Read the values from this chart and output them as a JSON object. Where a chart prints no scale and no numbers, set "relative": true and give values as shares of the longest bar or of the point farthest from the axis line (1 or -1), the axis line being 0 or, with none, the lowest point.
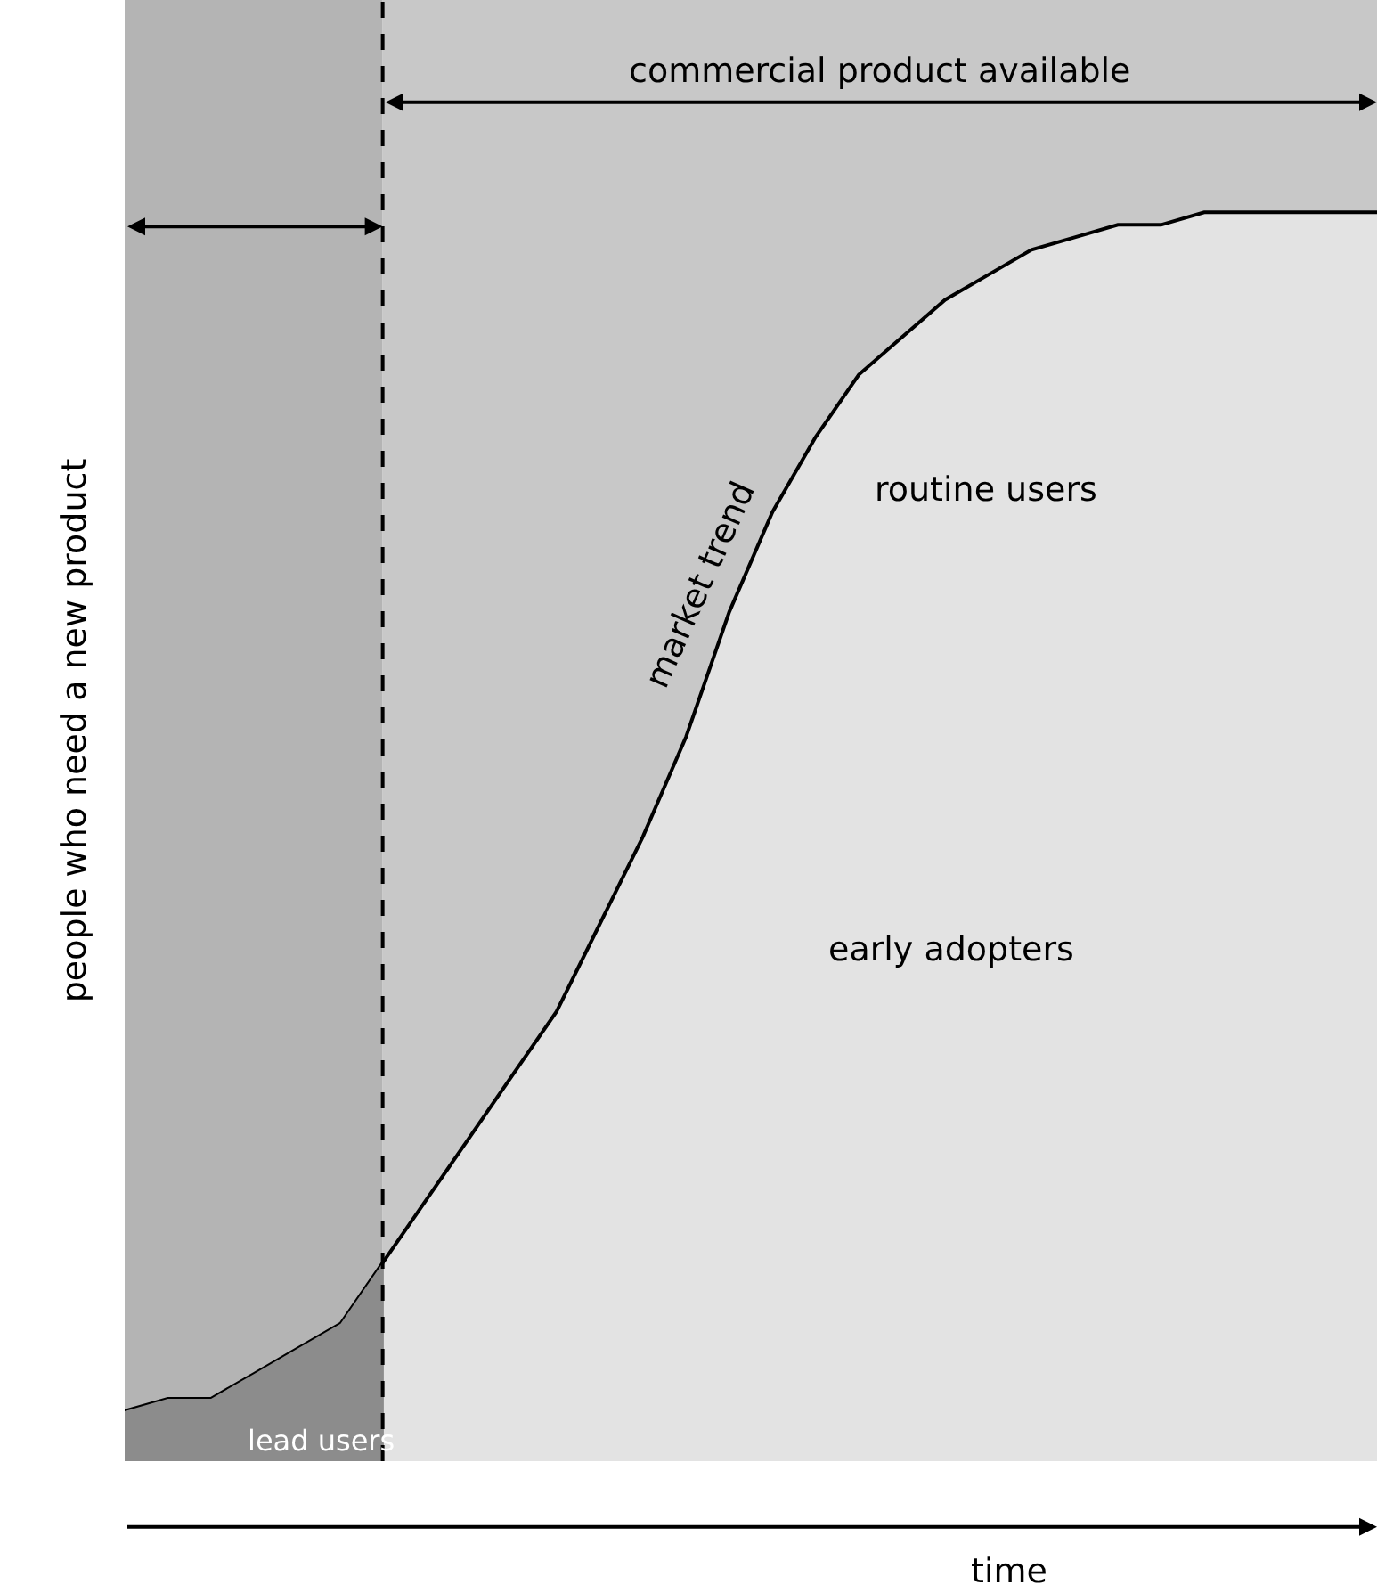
{
  "chart_data": {
    "type": "area",
    "relative": true,
    "tick_labels": false,
    "legend": false,
    "grid": false,
    "xlabel": "time",
    "ylabel": "people who need a new product",
    "categories": [
      null,
      null,
      null,
      null,
      null,
      null,
      null,
      null,
      null,
      null,
      null,
      null,
      null,
      null,
      null,
      null,
      null,
      null,
      null,
      null,
      null,
      null,
      null,
      null,
      null,
      null,
      null,
      null,
      null,
      null
    ],
    "series": [
      {
        "color": "#000000",
        "values": [
          0.04,
          0.05,
          0.05,
          0.07,
          0.09,
          0.11,
          0.16,
          0.21,
          0.26,
          0.31,
          0.36,
          0.43,
          0.5,
          0.58,
          0.68,
          0.76,
          0.82,
          0.87,
          0.9,
          0.93,
          0.95,
          0.97,
          0.98,
          0.99,
          0.99,
          1.0,
          1.0,
          1.0,
          1.0,
          1.0
        ]
      },
      {
        "color": "#8c8c8c",
        "values": [
          0.04,
          0.05,
          0.05,
          0.07,
          0.09,
          0.11,
          0.16,
          null,
          null,
          null,
          null,
          null,
          null,
          null,
          null,
          null,
          null,
          null,
          null,
          null,
          null,
          null,
          null,
          null,
          null,
          null,
          null,
          null,
          null,
          null
        ]
      }
    ],
    "annotations": [
      "commercial product available",
      "lead users",
      "market trend",
      "routine users",
      "early adopters"
    ]
  }
}
